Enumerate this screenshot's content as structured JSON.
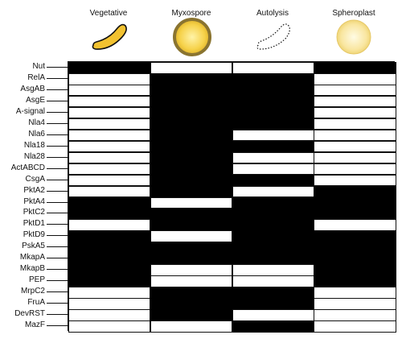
{
  "columns": [
    {
      "label": "Vegetative",
      "icon": "vegetative-rod-icon"
    },
    {
      "label": "Myxospore",
      "icon": "myxospore-sphere-icon"
    },
    {
      "label": "Autolysis",
      "icon": "autolysis-outline-icon"
    },
    {
      "label": "Spheroplast",
      "icon": "spheroplast-sphere-icon"
    }
  ],
  "colors": {
    "filled": "#000000",
    "empty": "#ffffff",
    "rod_fill": "#f2c230",
    "myxospore_ring": "#8a7430",
    "myxospore_fill": "#f6d24a",
    "spheroplast_fill": "#f9e6a0"
  },
  "rows": [
    {
      "label": "Nut",
      "states": [
        1,
        0,
        0,
        1
      ]
    },
    {
      "label": "RelA",
      "states": [
        0,
        1,
        1,
        0
      ]
    },
    {
      "label": "AsgAB",
      "states": [
        0,
        1,
        1,
        0
      ]
    },
    {
      "label": "AsgE",
      "states": [
        0,
        1,
        1,
        0
      ]
    },
    {
      "label": "A-signal",
      "states": [
        0,
        1,
        1,
        0
      ]
    },
    {
      "label": "Nla4",
      "states": [
        0,
        1,
        1,
        0
      ]
    },
    {
      "label": "Nla6",
      "states": [
        0,
        1,
        0,
        0
      ]
    },
    {
      "label": "Nla18",
      "states": [
        0,
        1,
        1,
        0
      ]
    },
    {
      "label": "Nla28",
      "states": [
        0,
        1,
        0,
        0
      ]
    },
    {
      "label": "ActABCD",
      "states": [
        0,
        1,
        0,
        0
      ]
    },
    {
      "label": "CsgA",
      "states": [
        0,
        1,
        1,
        0
      ]
    },
    {
      "label": "PktA2",
      "states": [
        0,
        1,
        0,
        1
      ]
    },
    {
      "label": "PktA4",
      "states": [
        1,
        0,
        1,
        1
      ]
    },
    {
      "label": "PktC2",
      "states": [
        1,
        1,
        1,
        1
      ]
    },
    {
      "label": "PktD1",
      "states": [
        0,
        1,
        1,
        0
      ]
    },
    {
      "label": "PktD9",
      "states": [
        1,
        0,
        1,
        1
      ]
    },
    {
      "label": "PskA5",
      "states": [
        1,
        1,
        1,
        1
      ]
    },
    {
      "label": "MkapA",
      "states": [
        1,
        1,
        1,
        1
      ]
    },
    {
      "label": "MkapB",
      "states": [
        1,
        0,
        0,
        1
      ]
    },
    {
      "label": "PEP",
      "states": [
        1,
        0,
        0,
        1
      ]
    },
    {
      "label": "MrpC2",
      "states": [
        0,
        1,
        1,
        0
      ]
    },
    {
      "label": "FruA",
      "states": [
        0,
        1,
        1,
        0
      ]
    },
    {
      "label": "DevRST",
      "states": [
        0,
        1,
        0,
        0
      ]
    },
    {
      "label": "MazF",
      "states": [
        0,
        0,
        1,
        0
      ]
    }
  ]
}
